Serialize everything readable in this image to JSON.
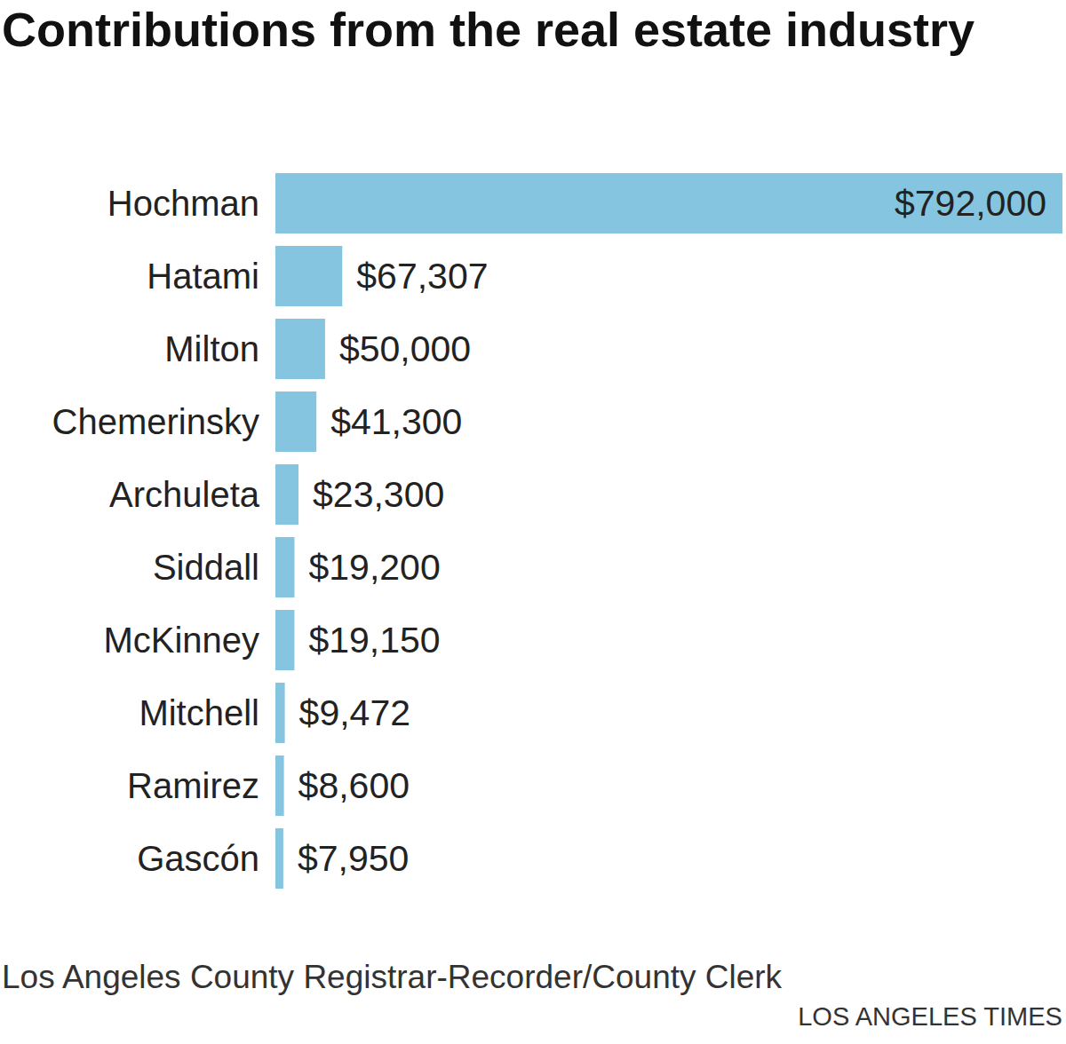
{
  "chart_data": {
    "type": "bar",
    "title": "Contributions from the real estate industry",
    "orientation": "horizontal",
    "categories": [
      "Hochman",
      "Hatami",
      "Milton",
      "Chemerinsky",
      "Archuleta",
      "Siddall",
      "McKinney",
      "Mitchell",
      "Ramirez",
      "Gascón"
    ],
    "values": [
      792000,
      67307,
      50000,
      41300,
      23300,
      19200,
      19150,
      9472,
      8600,
      7950
    ],
    "value_labels": [
      "$792,000",
      "$67,307",
      "$50,000",
      "$41,300",
      "$23,300",
      "$19,200",
      "$19,150",
      "$9,472",
      "$8,600",
      "$7,950"
    ],
    "color": "#85c5df",
    "xlim": [
      0,
      792000
    ],
    "data_labels": true,
    "tick_labels": "y",
    "grid": false,
    "annotations": [
      "Los Angeles County Registrar-Recorder/County Clerk",
      "LOS ANGELES TIMES"
    ]
  }
}
